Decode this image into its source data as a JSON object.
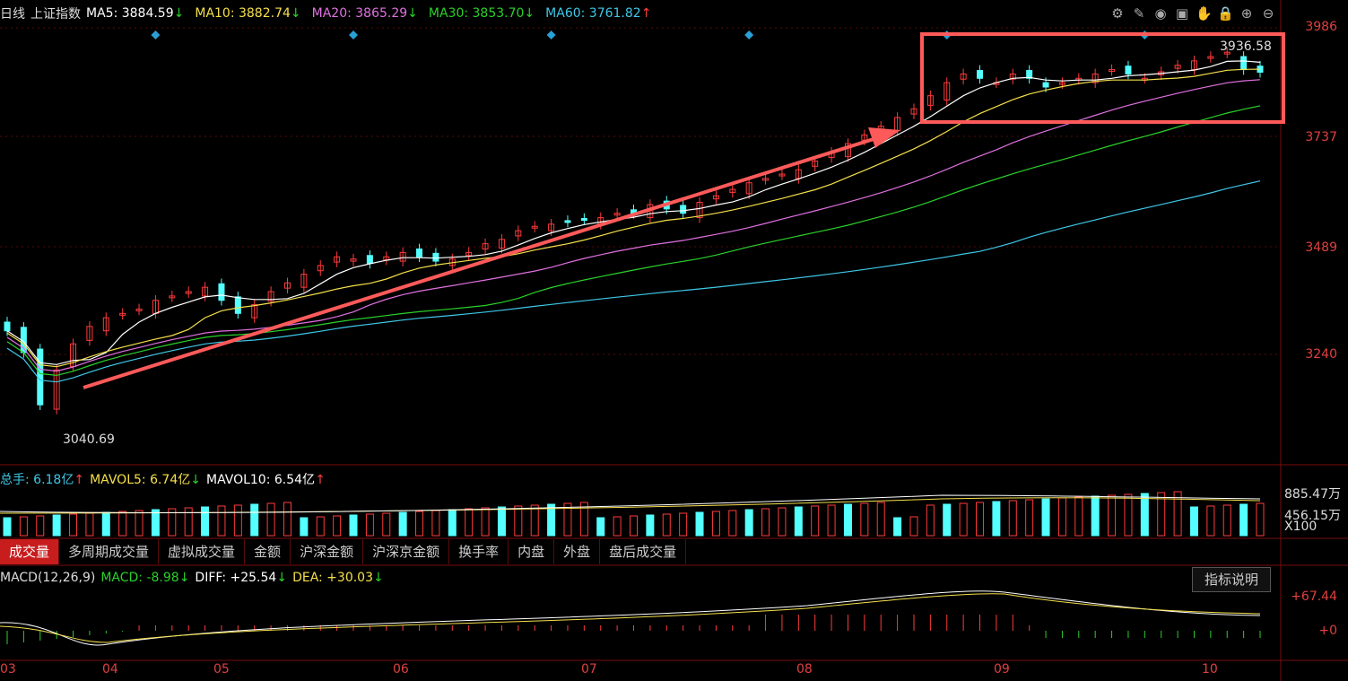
{
  "header": {
    "period": "日线",
    "symbol": "上证指数",
    "ma": [
      {
        "label": "MA5: 3884.59",
        "arrow": "↓",
        "color": "#ffffff"
      },
      {
        "label": "MA10: 3882.74",
        "arrow": "↓",
        "color": "#f5e04a"
      },
      {
        "label": "MA20: 3865.29",
        "arrow": "↓",
        "color": "#e070e0"
      },
      {
        "label": "MA30: 3853.70",
        "arrow": "↓",
        "color": "#2ad12a"
      },
      {
        "label": "MA60: 3761.82",
        "arrow": "↑",
        "color": "#3fc8e8"
      }
    ]
  },
  "toolbar_icons": [
    "settings-icon",
    "pen-icon",
    "eye-icon",
    "briefcase-icon",
    "hand-icon",
    "lock-icon",
    "zoom-in-icon",
    "zoom-out-icon"
  ],
  "price_axis": {
    "labels": [
      "3986",
      "3737",
      "3489",
      "3240"
    ]
  },
  "annotations": {
    "high_label": "3936.58",
    "low_label": "3040.69"
  },
  "volume": {
    "header": [
      {
        "label": "总手: 6.18亿",
        "arrow": "↑",
        "color": "#3fc8e8"
      },
      {
        "label": "MAVOL5: 6.74亿",
        "arrow": "↓",
        "color": "#f5e04a"
      },
      {
        "label": "MAVOL10: 6.54亿",
        "arrow": "↑",
        "color": "#ffffff"
      }
    ],
    "axis": [
      "885.47万",
      "456.15万",
      "X100"
    ]
  },
  "tabs": [
    "成交量",
    "多周期成交量",
    "虚拟成交量",
    "金额",
    "沪深金额",
    "沪深京金额",
    "换手率",
    "内盘",
    "外盘",
    "盘后成交量"
  ],
  "macd": {
    "header": [
      {
        "label": "MACD(12,26,9)",
        "arrow": "",
        "color": "#dddddd"
      },
      {
        "label": "MACD: -8.98",
        "arrow": "↓",
        "color": "#2ad12a"
      },
      {
        "label": "DIFF: +25.54",
        "arrow": "↓",
        "color": "#ffffff"
      },
      {
        "label": "DEA: +30.03",
        "arrow": "↓",
        "color": "#f5e04a"
      }
    ],
    "axis": [
      "+67.44",
      "+0"
    ],
    "button": "指标说明"
  },
  "months": [
    "03",
    "04",
    "05",
    "06",
    "07",
    "08",
    "09",
    "10"
  ],
  "chart_data": {
    "type": "candlestick",
    "ylim": [
      3040,
      3990
    ],
    "months": [
      "03",
      "04",
      "05",
      "06",
      "07",
      "08",
      "09",
      "10"
    ],
    "close_approx": [
      3290,
      3240,
      3120,
      3200,
      3260,
      3300,
      3320,
      3330,
      3340,
      3360,
      3370,
      3380,
      3390,
      3360,
      3330,
      3350,
      3380,
      3400,
      3420,
      3440,
      3460,
      3455,
      3445,
      3460,
      3470,
      3460,
      3450,
      3455,
      3470,
      3490,
      3500,
      3520,
      3530,
      3535,
      3540,
      3545,
      3550,
      3560,
      3560,
      3580,
      3570,
      3560,
      3585,
      3600,
      3615,
      3630,
      3640,
      3650,
      3660,
      3680,
      3700,
      3720,
      3740,
      3760,
      3780,
      3800,
      3830,
      3860,
      3880,
      3870,
      3860,
      3880,
      3870,
      3850,
      3860,
      3870,
      3880,
      3890,
      3880,
      3870,
      3885,
      3900,
      3910,
      3920,
      3930,
      3890,
      3884
    ],
    "ma5": 3884.59,
    "ma10": 3882.74,
    "ma20": 3865.29,
    "ma30": 3853.7,
    "ma60": 3761.82
  }
}
